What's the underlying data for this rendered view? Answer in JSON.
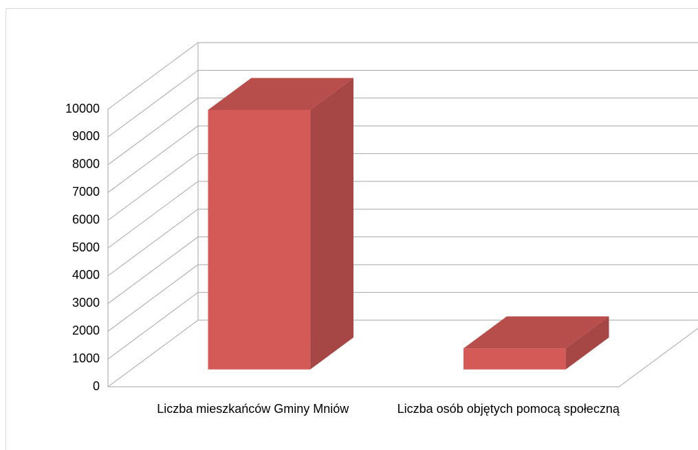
{
  "chart_data": {
    "type": "bar3d",
    "categories": [
      "Liczba mieszkańców Gminy Mniów",
      "Liczba osób objętych pomocą społeczną"
    ],
    "values": [
      9350,
      760
    ],
    "color": "#d45a57",
    "ylim": [
      0,
      10000
    ],
    "yticks": [
      0,
      1000,
      2000,
      3000,
      4000,
      5000,
      6000,
      7000,
      8000,
      9000,
      10000
    ],
    "grid": true
  }
}
